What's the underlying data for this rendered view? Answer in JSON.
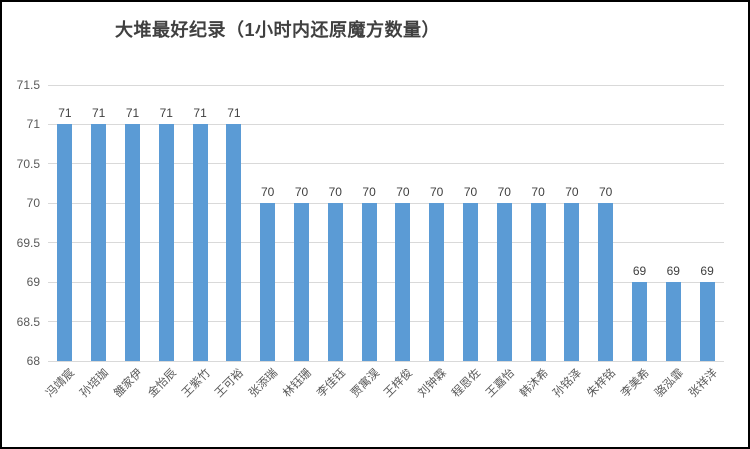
{
  "chart_data": {
    "type": "bar",
    "title": "大堆最好纪录（1小时内还原魔方数量）",
    "categories": [
      "冯靖宸",
      "孙培珈",
      "雒家伊",
      "金怡辰",
      "王紫竹",
      "王可裕",
      "张添瑞",
      "林钰珊",
      "李佳钰",
      "贾寓淏",
      "王梓俊",
      "刘钟霖",
      "程恩佐",
      "王嘉怡",
      "韩沐希",
      "孙铭泽",
      "朱梓铭",
      "李美希",
      "骆泓霏",
      "张祥洋"
    ],
    "values": [
      71,
      71,
      71,
      71,
      71,
      71,
      70,
      70,
      70,
      70,
      70,
      70,
      70,
      70,
      70,
      70,
      70,
      69,
      69,
      69
    ],
    "xlabel": "",
    "ylabel": "",
    "ylim": [
      68,
      71.5
    ],
    "yticks": [
      68,
      68.5,
      69,
      69.5,
      70,
      70.5,
      71,
      71.5
    ],
    "grid": true,
    "legend_position": "none",
    "data_labels": true,
    "bar_color": "#5b9bd5",
    "gridline_color": "#d9d9d9",
    "title_color": "#404040",
    "tick_label_color": "#595959",
    "value_label_color": "#404040"
  }
}
